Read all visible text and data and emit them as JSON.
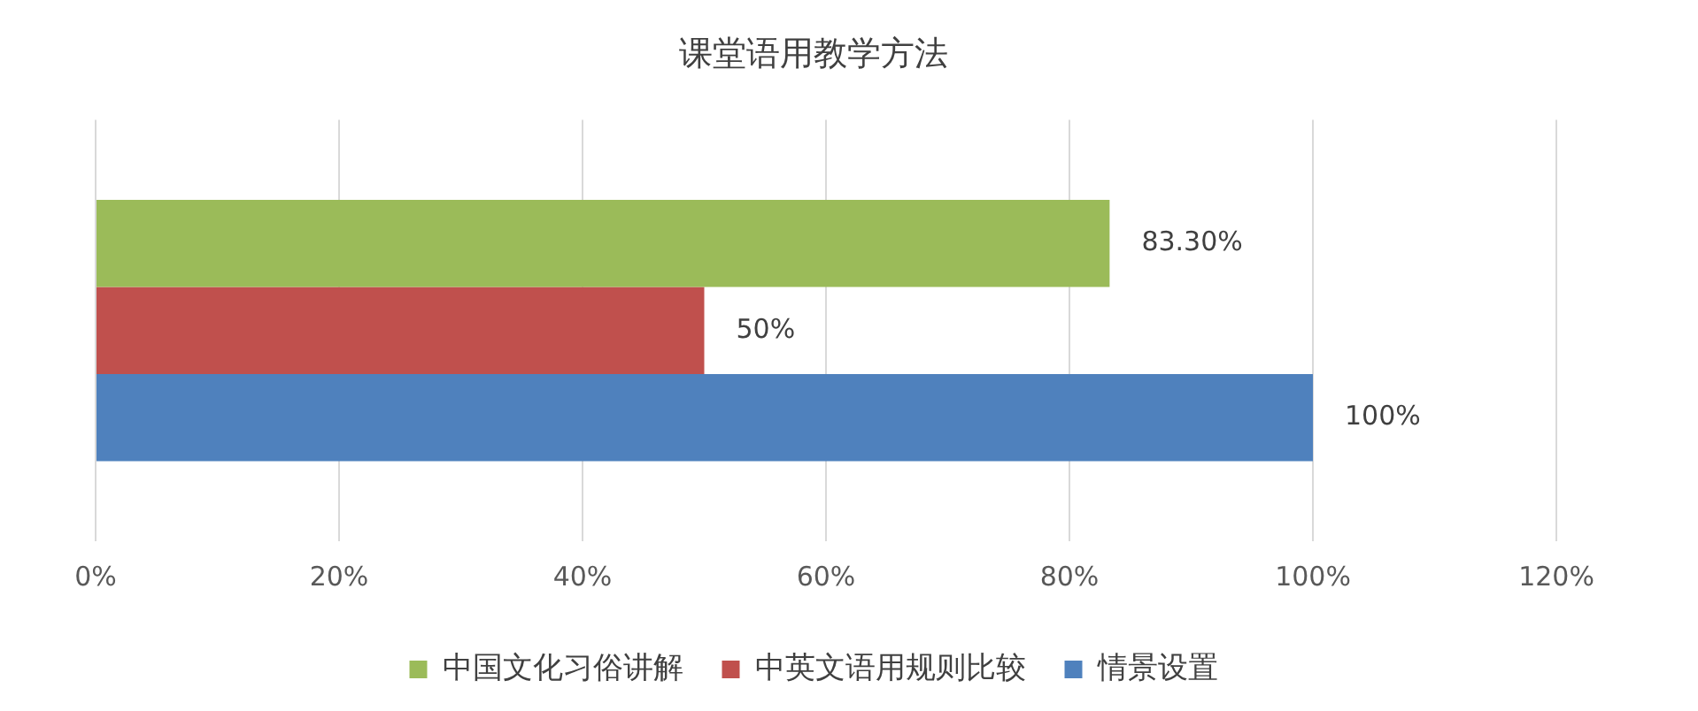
{
  "chart_data": {
    "type": "bar",
    "orientation": "horizontal",
    "title": "课堂语用教学方法",
    "categories": [
      null
    ],
    "series": [
      {
        "name": "中国文化习俗讲解",
        "color": "#9bbb59",
        "values": [
          83.3
        ],
        "value_labels": [
          "83.30%"
        ]
      },
      {
        "name": "中英文语用规则比较",
        "color": "#c0504d",
        "values": [
          50
        ],
        "value_labels": [
          "50%"
        ]
      },
      {
        "name": "情景设置",
        "color": "#4f81bd",
        "values": [
          100
        ],
        "value_labels": [
          "100%"
        ]
      }
    ],
    "xlim": [
      0,
      120
    ],
    "xticks": [
      {
        "value": 0,
        "label": "0%"
      },
      {
        "value": 20,
        "label": "20%"
      },
      {
        "value": 40,
        "label": "40%"
      },
      {
        "value": 60,
        "label": "60%"
      },
      {
        "value": 80,
        "label": "80%"
      },
      {
        "value": 100,
        "label": "100%"
      },
      {
        "value": 120,
        "label": "120%"
      }
    ],
    "grid": "x",
    "legend": "bottom"
  }
}
